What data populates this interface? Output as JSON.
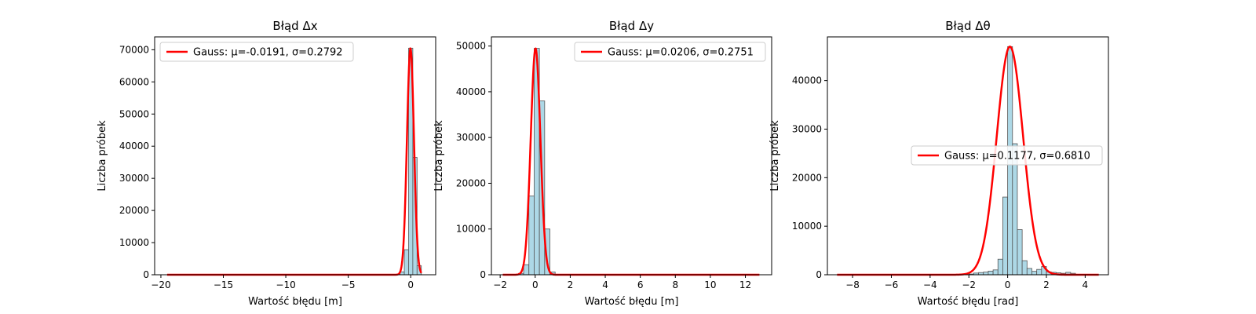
{
  "chart_data": [
    {
      "type": "bar",
      "title": "Błąd Δx",
      "xlabel": "Wartość błędu [m]",
      "ylabel": "Liczba próbek",
      "xlim": [
        -20.5,
        2.0
      ],
      "ylim": [
        0,
        74000
      ],
      "xticks": [
        -20,
        -15,
        -10,
        -5,
        0
      ],
      "yticks": [
        0,
        10000,
        20000,
        30000,
        40000,
        50000,
        60000,
        70000
      ],
      "grid": false,
      "legend_position": "upper-left",
      "bins": [
        {
          "x0": -0.85,
          "x1": -0.51,
          "count": 900
        },
        {
          "x0": -0.51,
          "x1": -0.17,
          "count": 7800
        },
        {
          "x0": -0.17,
          "x1": 0.17,
          "count": 70500
        },
        {
          "x0": 0.17,
          "x1": 0.51,
          "count": 36500
        },
        {
          "x0": 0.51,
          "x1": 0.85,
          "count": 2800
        }
      ],
      "fit": {
        "name": "Gauss: μ=-0.0191, σ=0.2792",
        "mu": -0.0191,
        "sigma": 0.2792,
        "peak": 70500,
        "range": [
          -19.5,
          0.85
        ],
        "color": "#ff0000"
      }
    },
    {
      "type": "bar",
      "title": "Błąd Δy",
      "xlabel": "Wartość błędu [m]",
      "ylabel": "Liczba próbek",
      "xlim": [
        -2.5,
        13.5
      ],
      "ylim": [
        0,
        52000
      ],
      "xticks": [
        -2,
        0,
        2,
        4,
        6,
        8,
        10,
        12
      ],
      "yticks": [
        0,
        10000,
        20000,
        30000,
        40000,
        50000
      ],
      "grid": false,
      "legend_position": "upper-right",
      "bins": [
        {
          "x0": -0.96,
          "x1": -0.66,
          "count": 300
        },
        {
          "x0": -0.66,
          "x1": -0.36,
          "count": 2200
        },
        {
          "x0": -0.36,
          "x1": -0.06,
          "count": 17200
        },
        {
          "x0": -0.06,
          "x1": 0.24,
          "count": 49500
        },
        {
          "x0": 0.24,
          "x1": 0.54,
          "count": 38000
        },
        {
          "x0": 0.54,
          "x1": 0.84,
          "count": 10000
        },
        {
          "x0": 0.84,
          "x1": 1.14,
          "count": 600
        }
      ],
      "fit": {
        "name": "Gauss: μ=0.0206, σ=0.2751",
        "mu": 0.0206,
        "sigma": 0.2751,
        "peak": 49500,
        "range": [
          -1.85,
          12.8
        ],
        "color": "#ff0000"
      }
    },
    {
      "type": "bar",
      "title": "Błąd Δθ",
      "xlabel": "Wartość błędu [rad]",
      "ylabel": "Liczba próbek",
      "xlim": [
        -9.3,
        5.2
      ],
      "ylim": [
        0,
        49000
      ],
      "xticks": [
        -8,
        -6,
        -4,
        -2,
        0,
        2,
        4
      ],
      "yticks": [
        0,
        10000,
        20000,
        30000,
        40000
      ],
      "grid": false,
      "legend_position": "center-right",
      "bins": [
        {
          "x0": -2.0,
          "x1": -1.75,
          "count": 150
        },
        {
          "x0": -1.75,
          "x1": -1.5,
          "count": 350
        },
        {
          "x0": -1.5,
          "x1": -1.25,
          "count": 450
        },
        {
          "x0": -1.25,
          "x1": -1.0,
          "count": 550
        },
        {
          "x0": -1.0,
          "x1": -0.75,
          "count": 750
        },
        {
          "x0": -0.75,
          "x1": -0.5,
          "count": 1000
        },
        {
          "x0": -0.5,
          "x1": -0.25,
          "count": 3200
        },
        {
          "x0": -0.25,
          "x1": 0.0,
          "count": 16000
        },
        {
          "x0": 0.0,
          "x1": 0.25,
          "count": 47000
        },
        {
          "x0": 0.25,
          "x1": 0.5,
          "count": 27000
        },
        {
          "x0": 0.5,
          "x1": 0.75,
          "count": 9300
        },
        {
          "x0": 0.75,
          "x1": 1.0,
          "count": 2900
        },
        {
          "x0": 1.0,
          "x1": 1.25,
          "count": 1300
        },
        {
          "x0": 1.25,
          "x1": 1.5,
          "count": 700
        },
        {
          "x0": 1.5,
          "x1": 1.75,
          "count": 1100
        },
        {
          "x0": 1.75,
          "x1": 2.0,
          "count": 1700
        },
        {
          "x0": 2.0,
          "x1": 2.25,
          "count": 600
        },
        {
          "x0": 2.25,
          "x1": 2.5,
          "count": 500
        },
        {
          "x0": 2.5,
          "x1": 2.75,
          "count": 400
        },
        {
          "x0": 2.75,
          "x1": 3.0,
          "count": 300
        },
        {
          "x0": 3.0,
          "x1": 3.25,
          "count": 500
        },
        {
          "x0": 3.25,
          "x1": 3.5,
          "count": 300
        }
      ],
      "fit": {
        "name": "Gauss: μ=0.1177, σ=0.6810",
        "mu": 0.1177,
        "sigma": 0.681,
        "peak": 47000,
        "range": [
          -8.8,
          4.7
        ],
        "color": "#ff0000"
      }
    }
  ]
}
